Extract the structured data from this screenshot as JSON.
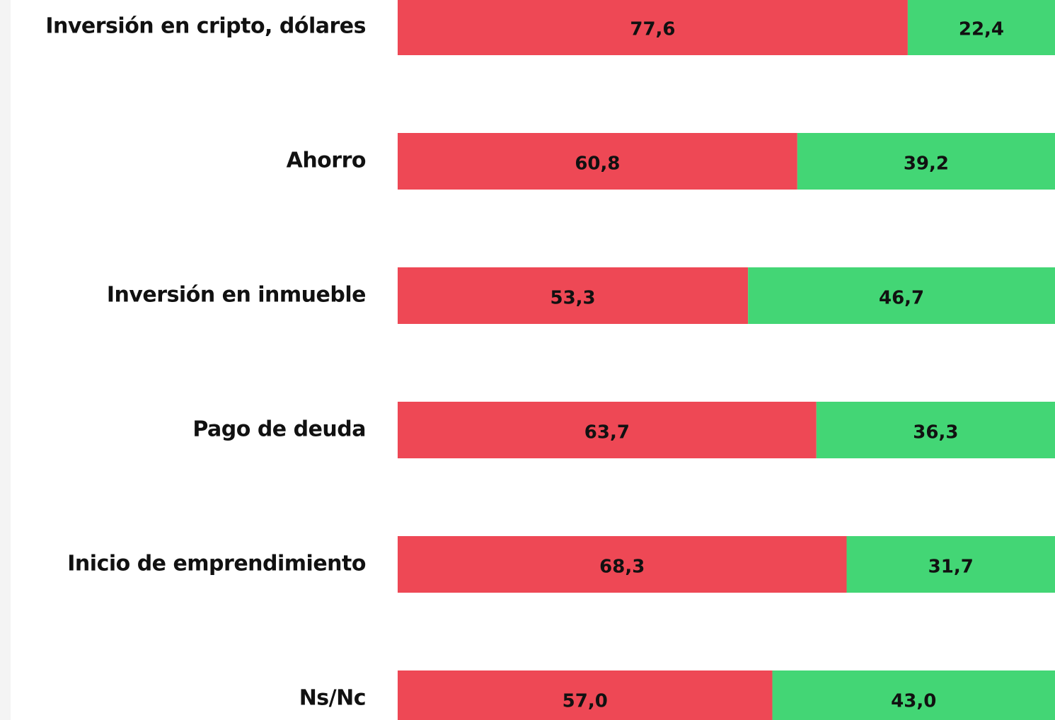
{
  "chart_data": {
    "type": "stacked-bar-horizontal",
    "categories": [
      "Inversión en cripto, dólares",
      "Ahorro",
      "Inversión en inmueble",
      "Pago de deuda",
      "Inicio de emprendimiento",
      "Ns/Nc"
    ],
    "series": [
      {
        "color": "#ee4855",
        "values": [
          77.6,
          60.8,
          53.3,
          63.7,
          68.3,
          57.0
        ],
        "value_labels": [
          "77,6",
          "60,8",
          "53,3",
          "63,7",
          "68,3",
          "57,0"
        ]
      },
      {
        "color": "#43d675",
        "values": [
          22.4,
          39.2,
          46.7,
          36.3,
          31.7,
          43.0
        ],
        "value_labels": [
          "22,4",
          "39,2",
          "46,7",
          "36,3",
          "31,7",
          "43,0"
        ]
      }
    ]
  }
}
